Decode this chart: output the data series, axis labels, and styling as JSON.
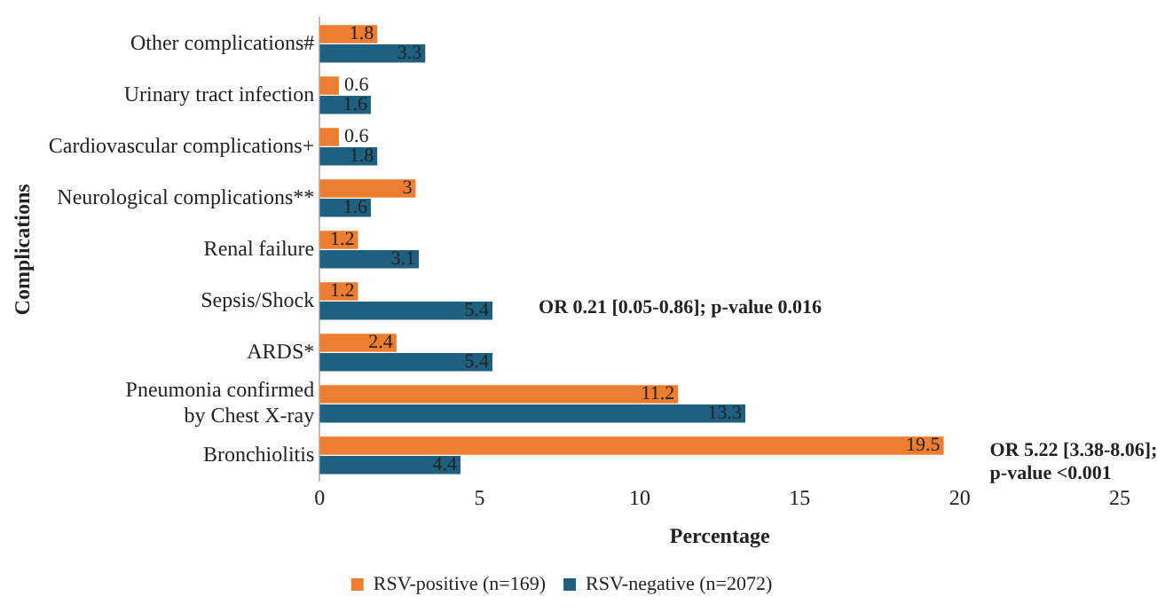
{
  "chart_data": {
    "type": "bar",
    "orientation": "horizontal",
    "categories": [
      "Other complications#",
      "Urinary tract infection",
      "Cardiovascular complications+",
      "Neurological complications**",
      "Renal failure",
      "Sepsis/Shock",
      "ARDS*",
      "Pneumonia confirmed\nby Chest X-ray",
      "Bronchiolitis"
    ],
    "series": [
      {
        "name": "RSV-positive (n=169)",
        "color": "#ed7d31",
        "values": [
          1.8,
          0.6,
          0.6,
          3,
          1.2,
          1.2,
          2.4,
          11.2,
          19.5
        ]
      },
      {
        "name": "RSV-negative (n=2072)",
        "color": "#1f5f7f",
        "values": [
          3.3,
          1.6,
          1.8,
          1.6,
          3.1,
          5.4,
          5.4,
          13.3,
          4.4
        ]
      }
    ],
    "xlim": [
      0,
      25
    ],
    "xticks": [
      0,
      5,
      10,
      15,
      20,
      25
    ],
    "xlabel": "Percentage",
    "ylabel": "Complications",
    "data_labels": true,
    "grid": false,
    "legend": "bottom",
    "annotations": [
      {
        "text": "OR 0.21 [0.05-0.86]; p-value 0.016",
        "x": 5.4,
        "y": "Sepsis/Shock"
      },
      {
        "text": "OR 5.22 [3.38-8.06];\np-value <0.001",
        "x": 19.5,
        "y": "Bronchiolitis"
      }
    ]
  }
}
